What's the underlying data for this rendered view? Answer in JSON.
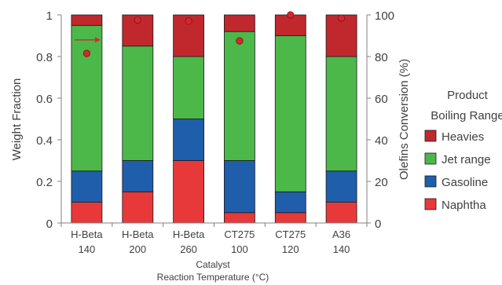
{
  "chart_data": {
    "type": "bar",
    "stacked": true,
    "categories": [
      [
        "H-Beta",
        "140"
      ],
      [
        "H-Beta",
        "200"
      ],
      [
        "H-Beta",
        "260"
      ],
      [
        "CT275",
        "100"
      ],
      [
        "CT275",
        "120"
      ],
      [
        "A36",
        "140"
      ]
    ],
    "series": [
      {
        "name": "Naphtha",
        "color": "#e8393a",
        "values": [
          0.1,
          0.15,
          0.3,
          0.05,
          0.05,
          0.1
        ]
      },
      {
        "name": "Gasoline",
        "color": "#1f5eab",
        "values": [
          0.15,
          0.15,
          0.2,
          0.25,
          0.1,
          0.15
        ]
      },
      {
        "name": "Jet range",
        "color": "#4cb84a",
        "values": [
          0.7,
          0.55,
          0.3,
          0.62,
          0.75,
          0.55
        ]
      },
      {
        "name": "Heavies",
        "color": "#c0282e",
        "values": [
          0.05,
          0.15,
          0.2,
          0.08,
          0.1,
          0.2
        ]
      }
    ],
    "secondary_series": {
      "type": "scatter",
      "axis": "right",
      "color": "#d9262b",
      "values": [
        81.5,
        97.5,
        97,
        87.5,
        100,
        98.5
      ]
    },
    "annotation_arrow": {
      "from_y": 0.88,
      "to_y": 0.88,
      "color": "#d9262b",
      "category_index": 0
    },
    "ylabel": "Weight Fraction",
    "y2label": "Olefins Conversion (%)",
    "xlabel_lines": [
      "Catalyst",
      "Reaction Temperature (°C)"
    ],
    "ylim": [
      0,
      1
    ],
    "y2lim": [
      0,
      100
    ],
    "yticks": [
      "0",
      "0.2",
      "0.4",
      "0.6",
      "0.8",
      "1"
    ],
    "y2ticks": [
      "0",
      "20",
      "40",
      "60",
      "80",
      "100"
    ],
    "grid": false,
    "legend_title_lines": [
      "Product",
      "Boiling Range"
    ],
    "legend_order": [
      "Heavies",
      "Jet range",
      "Gasoline",
      "Naphtha"
    ],
    "legend_position": "right"
  }
}
